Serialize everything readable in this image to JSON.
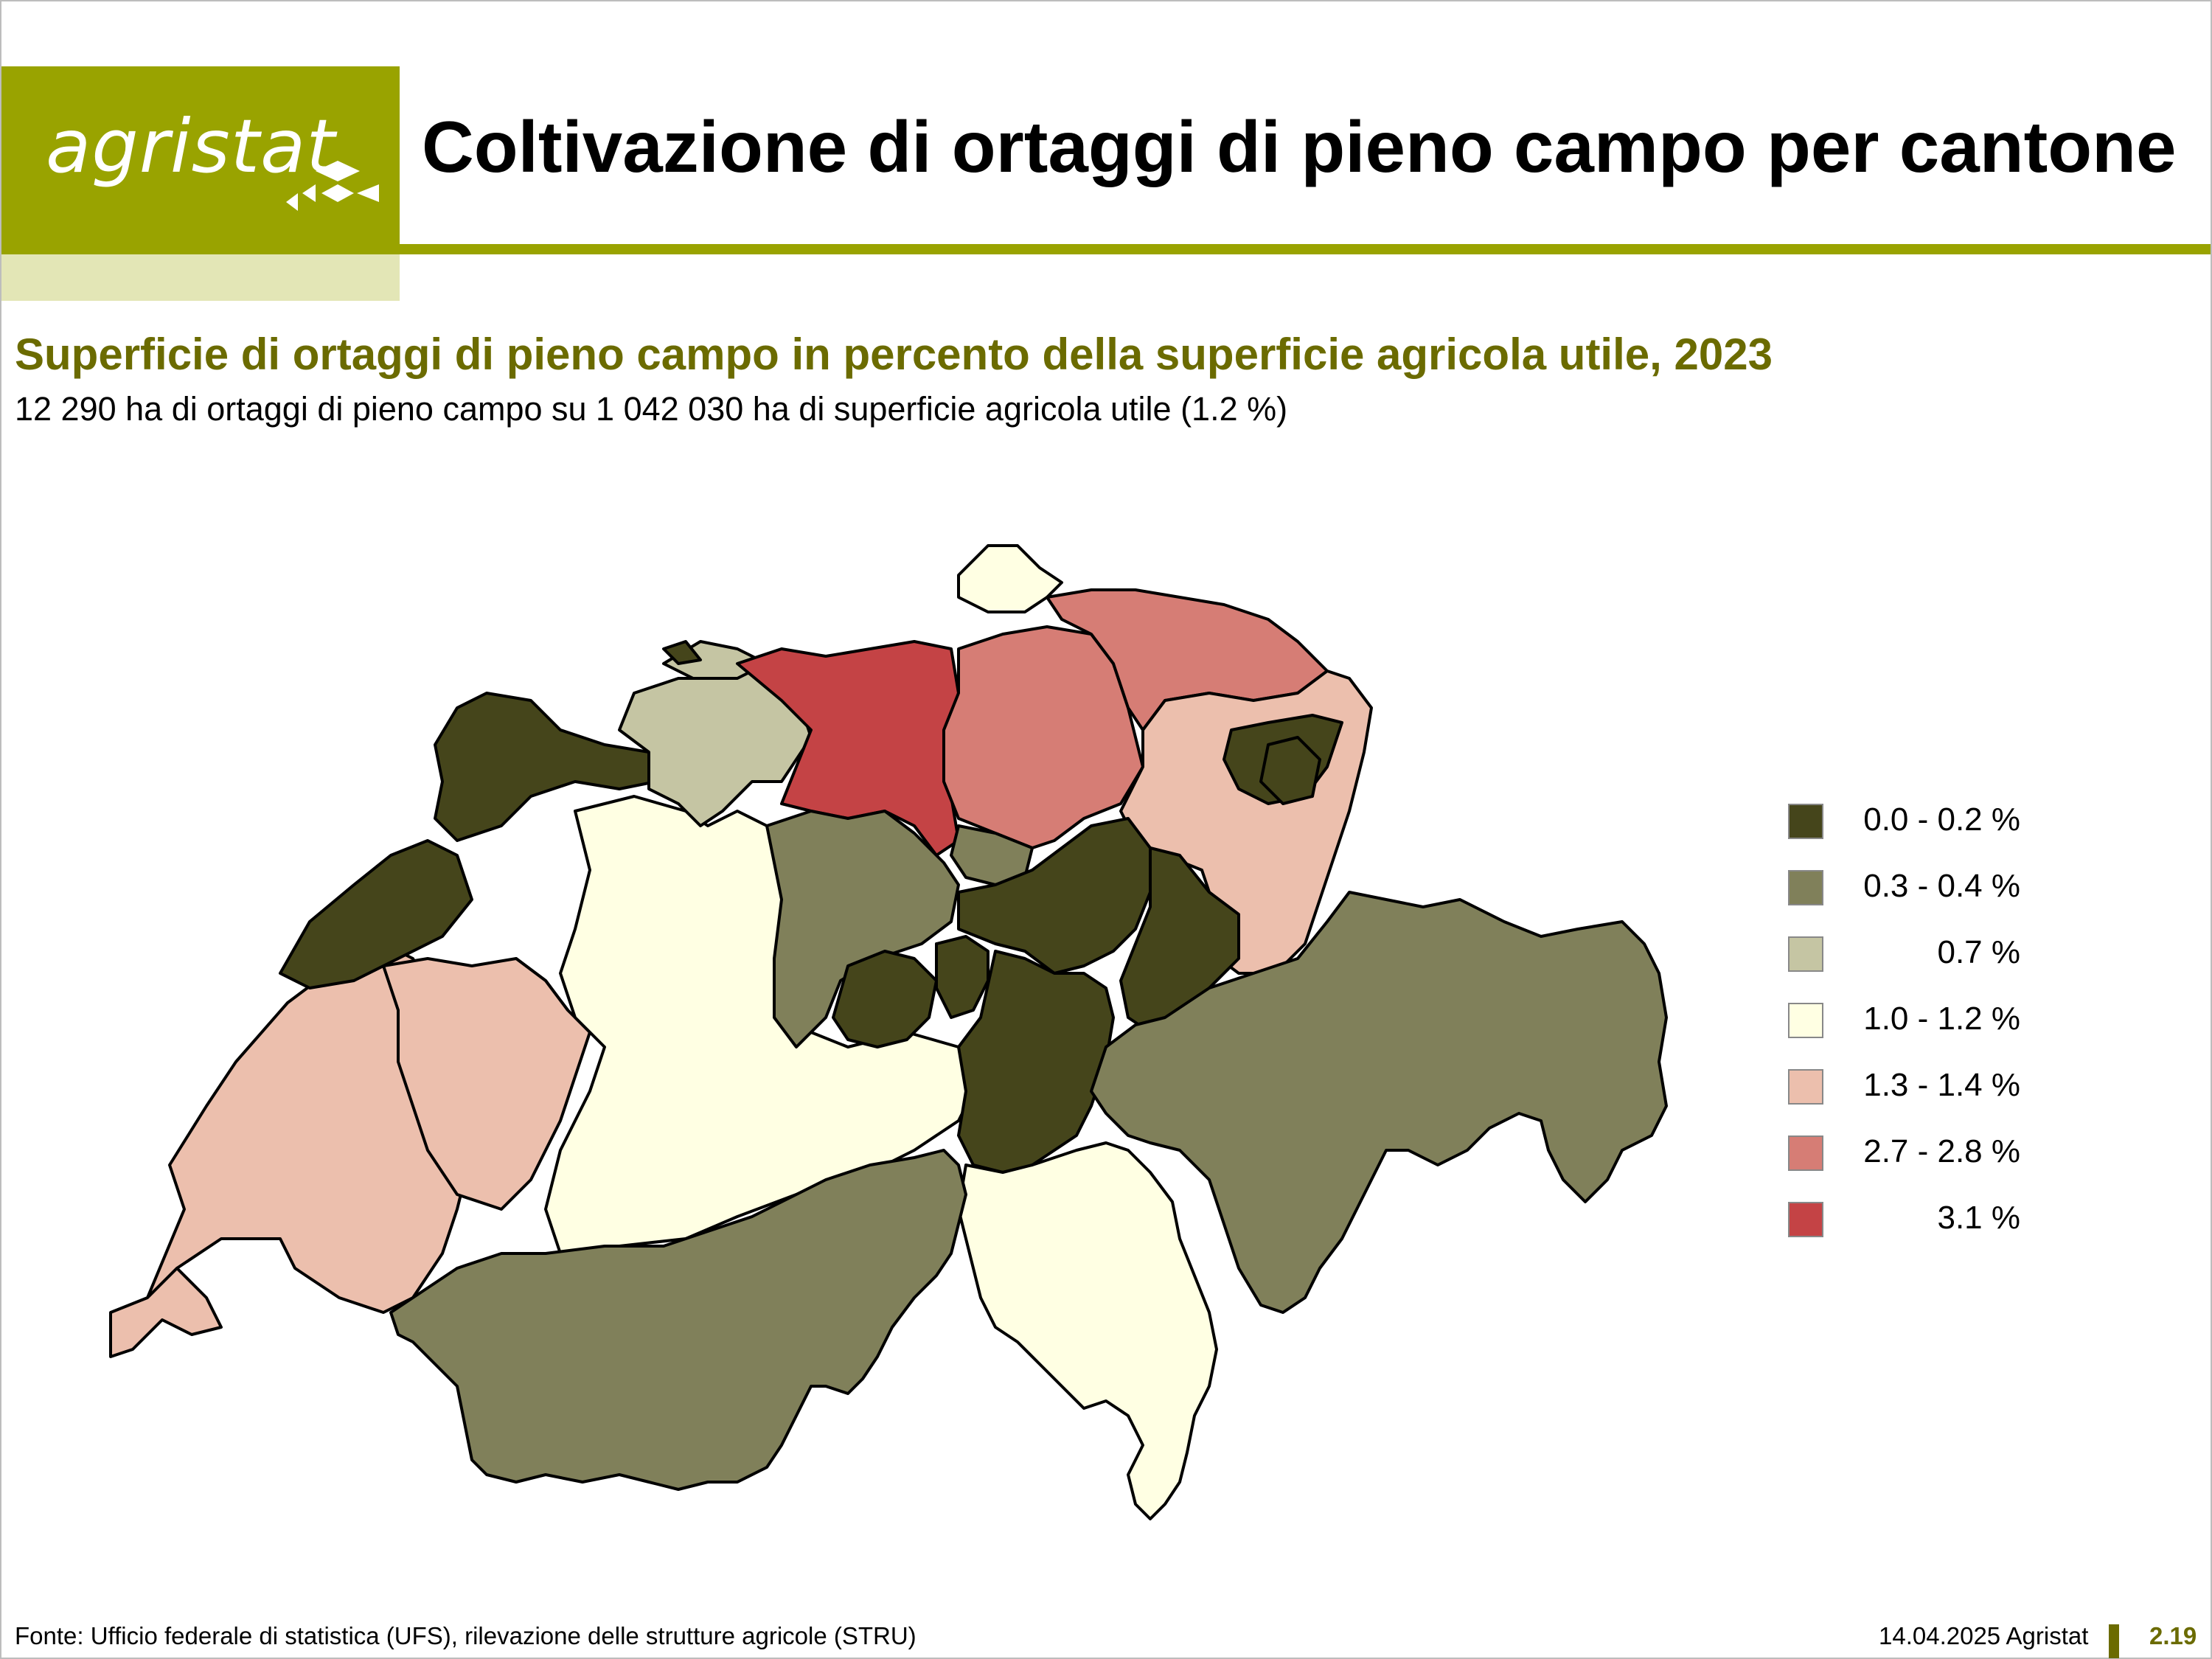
{
  "header": {
    "logo_text": "agristat",
    "title": "Coltivazione di ortaggi di pieno campo per cantone"
  },
  "map": {
    "subtitle": "Superficie di ortaggi di pieno campo in percento della superficie agricola utile, 2023",
    "summary": "12 290 ha di ortaggi di pieno campo su 1 042 030 ha di superficie agricola utile (1.2 %)",
    "legend": [
      {
        "label": "0.0 - 0.2 %",
        "color": "#45451b"
      },
      {
        "label": "0.3 - 0.4 %",
        "color": "#80805a"
      },
      {
        "label": "0.7 %",
        "color": "#c5c5a3"
      },
      {
        "label": "1.0 - 1.2 %",
        "color": "#ffffe3"
      },
      {
        "label": "1.3 - 1.4 %",
        "color": "#ecbfad"
      },
      {
        "label": "2.7 - 2.8 %",
        "color": "#d67d75"
      },
      {
        "label": "3.1 %",
        "color": "#c44345"
      }
    ]
  },
  "footer": {
    "source": "Fonte: Ufficio federale di statistica (UFS), rilevazione delle strutture agricole (STRU)",
    "date": "14.04.2025 Agristat",
    "page": "2.19"
  }
}
